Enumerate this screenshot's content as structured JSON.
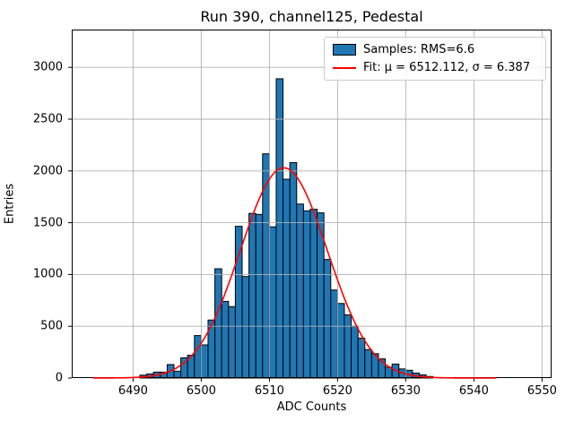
{
  "title": "Run 390, channel125, Pedestal",
  "xlabel": "ADC Counts",
  "ylabel": "Entries",
  "legend": {
    "samples_label": "Samples: RMS=6.6",
    "fit_label": "Fit: μ = 6512.112, σ = 6.387"
  },
  "colors": {
    "bar_fill": "#1f77b4",
    "bar_edge": "#000000",
    "fit_line": "#ff0000",
    "grid": "#b0b0b0",
    "spine": "#000000",
    "background": "#ffffff"
  },
  "chart_data": {
    "type": "bar",
    "subtype": "histogram",
    "title": "Run 390, channel125, Pedestal",
    "xlabel": "ADC Counts",
    "ylabel": "Entries",
    "bin_width": 1,
    "bin_start": 6491,
    "bin_left_edges": [
      6491,
      6492,
      6493,
      6494,
      6495,
      6496,
      6497,
      6498,
      6499,
      6500,
      6501,
      6502,
      6503,
      6504,
      6505,
      6506,
      6507,
      6508,
      6509,
      6510,
      6511,
      6512,
      6513,
      6514,
      6515,
      6516,
      6517,
      6518,
      6519,
      6520,
      6521,
      6522,
      6523,
      6524,
      6525,
      6526,
      6527,
      6528,
      6529,
      6530,
      6531,
      6532,
      6533
    ],
    "counts": [
      28,
      40,
      57,
      57,
      130,
      66,
      195,
      220,
      410,
      320,
      560,
      1055,
      740,
      690,
      1465,
      980,
      1590,
      1580,
      2165,
      1460,
      2890,
      1920,
      2080,
      1680,
      1615,
      1630,
      1595,
      1145,
      850,
      720,
      610,
      500,
      385,
      275,
      235,
      185,
      105,
      135,
      88,
      75,
      48,
      30,
      15
    ],
    "fit": {
      "mu": 6512.112,
      "sigma": 6.387,
      "amplitude": 2030,
      "x_min": 6484.2,
      "x_max": 6543.2
    },
    "xlim": [
      6481.0,
      6551.4
    ],
    "ylim": [
      0,
      3365
    ],
    "xticks": [
      6490,
      6500,
      6510,
      6520,
      6530,
      6540,
      6550
    ],
    "yticks": [
      0,
      500,
      1000,
      1500,
      2000,
      2500,
      3000
    ],
    "grid": true,
    "grid_above_bars": true,
    "legend_position": "upper right"
  }
}
